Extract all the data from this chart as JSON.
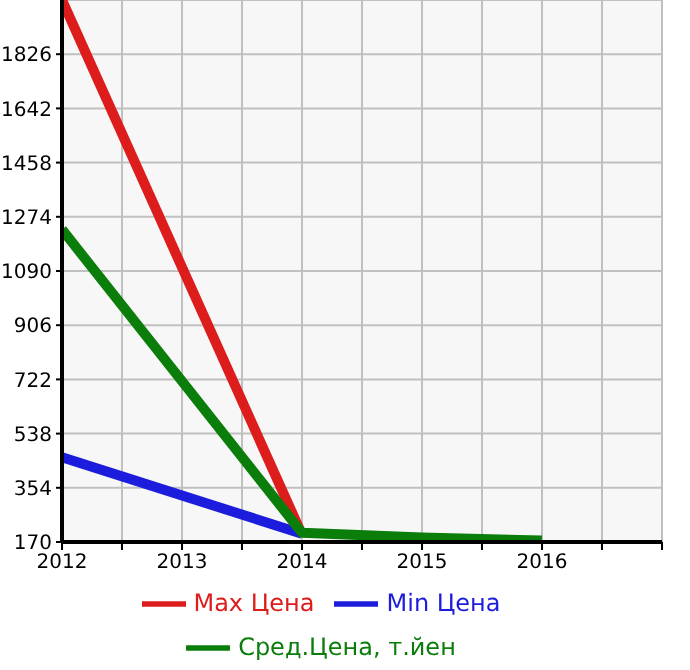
{
  "chart_data": {
    "type": "line",
    "x": [
      2012,
      2014,
      2015,
      2016
    ],
    "series": [
      {
        "name": "Max Цена",
        "color": "#dd1c1c",
        "values": [
          2010,
          195,
          null,
          null
        ]
      },
      {
        "name": "Min Цена",
        "color": "#1c1cdd",
        "values": [
          458,
          198,
          null,
          null
        ]
      },
      {
        "name": "Сред.Цена, т.йен",
        "color": "#0a7d0a",
        "values": [
          1231,
          201,
          185,
          175
        ]
      }
    ],
    "xlim": [
      2012,
      2017
    ],
    "xticks": [
      2012,
      {
        "value": 2012.5,
        "label": null
      },
      2013,
      {
        "value": 2013.5,
        "label": null
      },
      2014,
      {
        "value": 2014.5,
        "label": null
      },
      2015,
      {
        "value": 2015.5,
        "label": null
      },
      2016,
      {
        "value": 2016.5,
        "label": null
      },
      {
        "value": 2017,
        "label": null
      }
    ],
    "ylim": [
      170,
      2010
    ],
    "yticks": [
      170,
      354,
      538,
      722,
      906,
      1090,
      1274,
      1458,
      1642,
      1826
    ],
    "grid": true,
    "legend": "bottom",
    "marker": "none",
    "line_style": "solid"
  }
}
